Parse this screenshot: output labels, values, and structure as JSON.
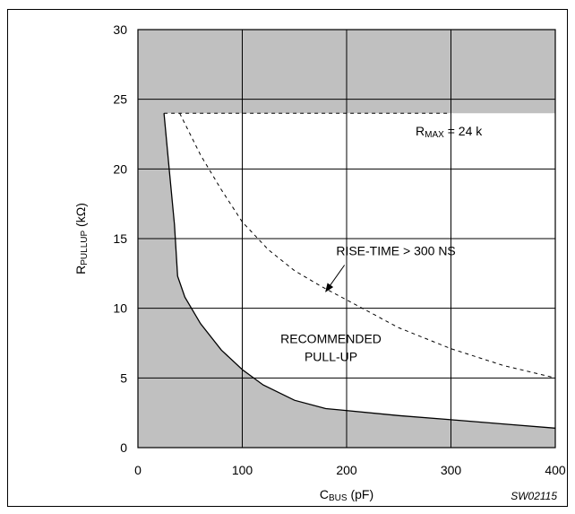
{
  "chart_data": {
    "type": "area",
    "xlabel": {
      "main": "C",
      "sub": "BUS",
      "suffix": " (pF)"
    },
    "ylabel": {
      "main": "R",
      "sub": "PULLUP",
      "suffix": " (kΩ)"
    },
    "xlim": [
      0,
      400
    ],
    "ylim": [
      0,
      30
    ],
    "xticks": [
      0,
      100,
      200,
      300,
      400
    ],
    "yticks": [
      0,
      5,
      10,
      15,
      20,
      25,
      30
    ],
    "grid": true,
    "series": [
      {
        "role": "minimum-boundary",
        "style": "solid",
        "x": [
          25,
          30,
          35,
          38,
          38,
          45,
          60,
          80,
          100,
          120,
          150,
          180,
          195,
          250,
          300,
          350,
          400
        ],
        "y": [
          24,
          20,
          16,
          12.3,
          12.3,
          10.8,
          8.9,
          7,
          5.6,
          4.5,
          3.4,
          2.8,
          2.7,
          2.3,
          2.0,
          1.7,
          1.4
        ]
      },
      {
        "role": "rise-time-limit",
        "style": "dashed",
        "x": [
          40,
          60,
          80,
          100,
          125,
          150,
          175,
          200,
          250,
          300,
          350,
          400
        ],
        "y": [
          24,
          21,
          18.5,
          16.2,
          14.2,
          12.7,
          11.6,
          10.6,
          8.6,
          7.1,
          5.9,
          5
        ]
      },
      {
        "role": "r-max",
        "style": "dashed",
        "x": [
          25,
          300
        ],
        "y": [
          24,
          24
        ]
      }
    ],
    "regions": {
      "recommended_top": 24,
      "shade_color": "#c0c0c0"
    },
    "annotations": {
      "rmax": {
        "main": "R",
        "sub": "MAX",
        "suffix": " = 24 k",
        "x": 298,
        "y": 22.4
      },
      "rise_time": {
        "text": "RISE-TIME > 300 NS",
        "x": 190,
        "y": 13.8,
        "arrow_from": [
          198,
          13.1
        ],
        "arrow_to": [
          180,
          11.2
        ]
      },
      "recommended": {
        "line1": "RECOMMENDED",
        "line2": "PULL-UP",
        "x": 185,
        "y1": 7.5,
        "y2": 6.2
      }
    },
    "figure_id": "SW02115"
  }
}
